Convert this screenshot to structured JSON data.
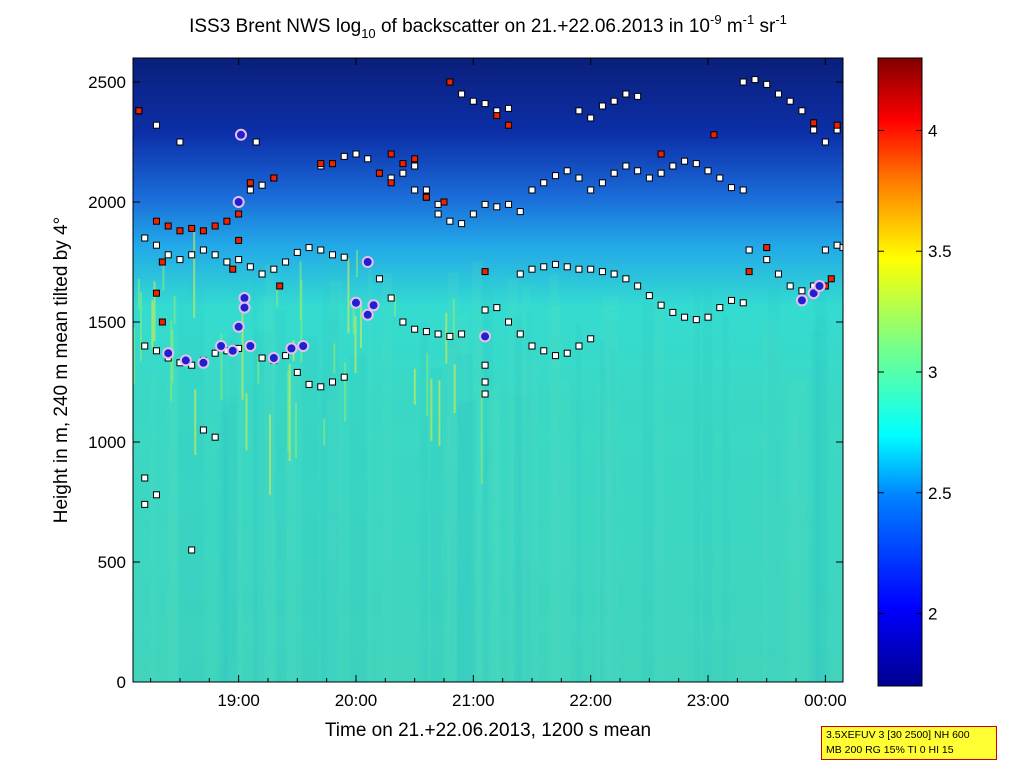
{
  "chart_data": {
    "type": "heatmap",
    "title": {
      "prefix": "ISS3 Brent NWS log",
      "sub": "10",
      "middle": " of backscatter on 21.+22.06.2013 in 10",
      "sup1": "-9",
      "unit_m": " m",
      "sup2": "-1",
      "unit_sr": " sr",
      "sup3": "-1"
    },
    "xlabel": "Time on 21.+22.06.2013, 1200 s mean",
    "ylabel": "Height in m, 240 m mean tilted by 4°",
    "xlim": [
      18.1,
      24.15
    ],
    "ylim": [
      0,
      2600
    ],
    "x_ticks": [
      {
        "value": 19.0,
        "label": "19:00"
      },
      {
        "value": 20.0,
        "label": "20:00"
      },
      {
        "value": 21.0,
        "label": "21:00"
      },
      {
        "value": 22.0,
        "label": "22:00"
      },
      {
        "value": 23.0,
        "label": "23:00"
      },
      {
        "value": 24.0,
        "label": "00:00"
      }
    ],
    "y_ticks": [
      0,
      500,
      1000,
      1500,
      2000,
      2500
    ],
    "colorbar": {
      "range": [
        1.7,
        4.3
      ],
      "ticks": [
        2,
        2.5,
        3,
        3.5,
        4
      ],
      "colormap": "jet",
      "colors": [
        "#00008f",
        "#0000ff",
        "#0080ff",
        "#00ffff",
        "#80ff80",
        "#ffff00",
        "#ff8000",
        "#ff0000",
        "#800000"
      ]
    },
    "background_field": [
      {
        "height_range": [
          0,
          800
        ],
        "value": 2.75
      },
      {
        "height_range": [
          800,
          1300
        ],
        "value": 2.75
      },
      {
        "height_range": [
          1300,
          1800
        ],
        "value": 2.6
      },
      {
        "height_range": [
          1800,
          2200
        ],
        "value": 2.35
      },
      {
        "height_range": [
          2200,
          2600
        ],
        "value": 1.9
      }
    ],
    "series": [
      {
        "marker": "white-square",
        "points": [
          [
            18.15,
            2380
          ],
          [
            18.3,
            2320
          ],
          [
            18.5,
            2250
          ],
          [
            19.15,
            2250
          ],
          [
            18.2,
            1850
          ],
          [
            18.3,
            1820
          ],
          [
            18.4,
            1780
          ],
          [
            18.5,
            1760
          ],
          [
            18.6,
            1780
          ],
          [
            18.7,
            1800
          ],
          [
            18.8,
            1780
          ],
          [
            18.9,
            1750
          ],
          [
            19.0,
            1760
          ],
          [
            19.1,
            1730
          ],
          [
            19.2,
            1700
          ],
          [
            19.3,
            1720
          ],
          [
            19.4,
            1750
          ],
          [
            19.5,
            1790
          ],
          [
            19.6,
            1810
          ],
          [
            19.7,
            1800
          ],
          [
            19.8,
            1780
          ],
          [
            19.9,
            1770
          ],
          [
            19.1,
            2050
          ],
          [
            19.2,
            2070
          ],
          [
            19.3,
            2100
          ],
          [
            19.7,
            2150
          ],
          [
            19.8,
            2160
          ],
          [
            19.9,
            2190
          ],
          [
            20.0,
            2200
          ],
          [
            20.1,
            2180
          ],
          [
            20.2,
            2120
          ],
          [
            20.3,
            2100
          ],
          [
            20.4,
            2120
          ],
          [
            20.5,
            2150
          ],
          [
            20.6,
            2050
          ],
          [
            20.7,
            1950
          ],
          [
            20.8,
            1920
          ],
          [
            20.9,
            1910
          ],
          [
            21.0,
            1950
          ],
          [
            21.1,
            1990
          ],
          [
            21.2,
            1980
          ],
          [
            21.3,
            1990
          ],
          [
            21.4,
            1960
          ],
          [
            20.5,
            2050
          ],
          [
            20.6,
            2020
          ],
          [
            20.7,
            1990
          ],
          [
            21.5,
            2050
          ],
          [
            21.6,
            2080
          ],
          [
            21.7,
            2110
          ],
          [
            21.8,
            2130
          ],
          [
            21.9,
            2100
          ],
          [
            22.0,
            2050
          ],
          [
            22.1,
            2080
          ],
          [
            22.2,
            2120
          ],
          [
            22.3,
            2150
          ],
          [
            22.4,
            2130
          ],
          [
            22.5,
            2100
          ],
          [
            22.6,
            2120
          ],
          [
            22.7,
            2150
          ],
          [
            22.8,
            2170
          ],
          [
            22.9,
            2160
          ],
          [
            23.0,
            2130
          ],
          [
            23.1,
            2100
          ],
          [
            23.2,
            2060
          ],
          [
            23.3,
            2050
          ],
          [
            20.8,
            2500
          ],
          [
            20.9,
            2450
          ],
          [
            21.0,
            2420
          ],
          [
            21.1,
            2410
          ],
          [
            21.2,
            2380
          ],
          [
            21.3,
            2390
          ],
          [
            21.9,
            2380
          ],
          [
            22.0,
            2350
          ],
          [
            22.1,
            2400
          ],
          [
            22.2,
            2420
          ],
          [
            22.3,
            2450
          ],
          [
            22.4,
            2440
          ],
          [
            23.3,
            2500
          ],
          [
            23.4,
            2510
          ],
          [
            23.5,
            2490
          ],
          [
            23.6,
            2450
          ],
          [
            23.7,
            2420
          ],
          [
            23.8,
            2380
          ],
          [
            23.9,
            2300
          ],
          [
            24.0,
            2250
          ],
          [
            24.1,
            2300
          ],
          [
            18.2,
            1400
          ],
          [
            18.3,
            1380
          ],
          [
            18.4,
            1350
          ],
          [
            18.5,
            1330
          ],
          [
            18.6,
            1320
          ],
          [
            18.7,
            1340
          ],
          [
            18.8,
            1370
          ],
          [
            18.9,
            1380
          ],
          [
            19.0,
            1390
          ],
          [
            19.1,
            1400
          ],
          [
            19.2,
            1350
          ],
          [
            19.3,
            1340
          ],
          [
            19.4,
            1360
          ],
          [
            19.5,
            1290
          ],
          [
            19.6,
            1240
          ],
          [
            19.7,
            1230
          ],
          [
            19.8,
            1250
          ],
          [
            19.9,
            1270
          ],
          [
            18.7,
            1050
          ],
          [
            18.8,
            1020
          ],
          [
            18.2,
            850
          ],
          [
            18.3,
            780
          ],
          [
            18.2,
            740
          ],
          [
            18.6,
            550
          ],
          [
            20.2,
            1680
          ],
          [
            20.3,
            1600
          ],
          [
            20.4,
            1500
          ],
          [
            20.5,
            1470
          ],
          [
            20.6,
            1460
          ],
          [
            20.7,
            1450
          ],
          [
            20.8,
            1440
          ],
          [
            20.9,
            1450
          ],
          [
            21.1,
            1550
          ],
          [
            21.2,
            1560
          ],
          [
            21.3,
            1500
          ],
          [
            21.4,
            1450
          ],
          [
            21.5,
            1400
          ],
          [
            21.6,
            1380
          ],
          [
            21.7,
            1360
          ],
          [
            21.8,
            1370
          ],
          [
            21.9,
            1400
          ],
          [
            22.0,
            1430
          ],
          [
            21.1,
            1320
          ],
          [
            21.1,
            1250
          ],
          [
            21.1,
            1200
          ],
          [
            21.4,
            1700
          ],
          [
            21.5,
            1720
          ],
          [
            21.6,
            1730
          ],
          [
            21.7,
            1740
          ],
          [
            21.8,
            1730
          ],
          [
            21.9,
            1720
          ],
          [
            22.0,
            1720
          ],
          [
            22.1,
            1710
          ],
          [
            22.2,
            1700
          ],
          [
            22.3,
            1680
          ],
          [
            22.4,
            1650
          ],
          [
            22.5,
            1610
          ],
          [
            22.6,
            1570
          ],
          [
            22.7,
            1540
          ],
          [
            22.8,
            1520
          ],
          [
            22.9,
            1510
          ],
          [
            23.0,
            1520
          ],
          [
            23.1,
            1560
          ],
          [
            23.2,
            1590
          ],
          [
            23.3,
            1580
          ],
          [
            23.35,
            1800
          ],
          [
            23.5,
            1760
          ],
          [
            23.6,
            1700
          ],
          [
            23.7,
            1650
          ],
          [
            23.8,
            1630
          ],
          [
            23.9,
            1650
          ],
          [
            24.0,
            1800
          ],
          [
            24.1,
            1820
          ],
          [
            24.15,
            1810
          ]
        ]
      },
      {
        "marker": "red-square",
        "points": [
          [
            18.15,
            2380
          ],
          [
            18.3,
            1920
          ],
          [
            18.4,
            1900
          ],
          [
            18.5,
            1880
          ],
          [
            18.6,
            1890
          ],
          [
            18.7,
            1880
          ],
          [
            18.8,
            1900
          ],
          [
            18.9,
            1920
          ],
          [
            19.0,
            1950
          ],
          [
            19.0,
            1840
          ],
          [
            18.3,
            1620
          ],
          [
            18.35,
            1500
          ],
          [
            18.35,
            1750
          ],
          [
            18.95,
            1720
          ],
          [
            19.35,
            1650
          ],
          [
            19.1,
            2080
          ],
          [
            19.3,
            2100
          ],
          [
            19.7,
            2160
          ],
          [
            19.8,
            2160
          ],
          [
            20.2,
            2120
          ],
          [
            20.3,
            2080
          ],
          [
            20.4,
            2160
          ],
          [
            20.5,
            2180
          ],
          [
            20.6,
            2020
          ],
          [
            20.3,
            2200
          ],
          [
            20.75,
            2000
          ],
          [
            21.1,
            1710
          ],
          [
            23.35,
            1710
          ],
          [
            23.5,
            1810
          ],
          [
            24.0,
            1650
          ],
          [
            24.05,
            1680
          ],
          [
            21.2,
            2360
          ],
          [
            21.3,
            2320
          ],
          [
            20.8,
            2500
          ],
          [
            22.6,
            2200
          ],
          [
            23.05,
            2280
          ],
          [
            24.1,
            2320
          ],
          [
            23.9,
            2330
          ]
        ]
      },
      {
        "marker": "blue-circle",
        "points": [
          [
            18.4,
            1370
          ],
          [
            18.55,
            1340
          ],
          [
            18.7,
            1330
          ],
          [
            18.85,
            1400
          ],
          [
            18.95,
            1380
          ],
          [
            19.0,
            1480
          ],
          [
            19.05,
            1600
          ],
          [
            19.1,
            1400
          ],
          [
            19.3,
            1350
          ],
          [
            19.45,
            1390
          ],
          [
            19.55,
            1400
          ],
          [
            19.0,
            2000
          ],
          [
            19.02,
            2280
          ],
          [
            19.05,
            1560
          ],
          [
            20.1,
            1750
          ],
          [
            20.1,
            1530
          ],
          [
            20.15,
            1570
          ],
          [
            20.0,
            1580
          ],
          [
            21.1,
            1440
          ],
          [
            23.8,
            1590
          ],
          [
            23.9,
            1620
          ],
          [
            23.95,
            1650
          ]
        ]
      }
    ]
  }
}
